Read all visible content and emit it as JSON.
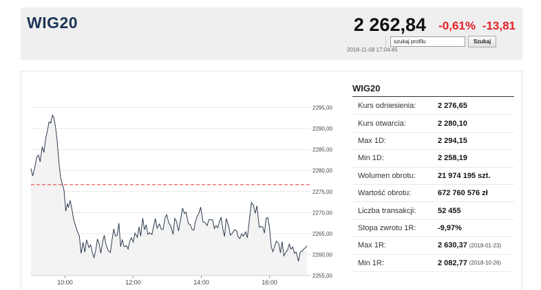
{
  "header": {
    "title": "WIG20",
    "value": "2 262,84",
    "change_pct": "-0,61%",
    "change_abs": "-13,81",
    "timestamp": "2018-11-08 17:04:45",
    "search_placeholder": "szukaj profilu",
    "search_button": "Szukaj"
  },
  "colors": {
    "negative": "#e31e24",
    "title": "#1d3557",
    "line": "#2b3a4d",
    "reference": "#e8323c"
  },
  "table": {
    "title": "WIG20",
    "rows": [
      {
        "label": "Kurs odniesienia:",
        "value": "2 276,65",
        "date": ""
      },
      {
        "label": "Kurs otwarcia:",
        "value": "2 280,10",
        "date": ""
      },
      {
        "label": "Max 1D:",
        "value": "2 294,15",
        "date": ""
      },
      {
        "label": "Min 1D:",
        "value": "2 258,19",
        "date": ""
      },
      {
        "label": "Wolumen obrotu:",
        "value": "21 974 195 szt.",
        "date": ""
      },
      {
        "label": "Wartość obrotu:",
        "value": "672 760 576 zł",
        "date": ""
      },
      {
        "label": "Liczba transakcji:",
        "value": "52 455",
        "date": ""
      },
      {
        "label": "Stopa zwrotu 1R:",
        "value": "-9,97%",
        "date": ""
      },
      {
        "label": "Max 1R:",
        "value": "2 630,37",
        "date": "(2018-01-23)"
      },
      {
        "label": "Min 1R:",
        "value": "2 082,77",
        "date": "(2018-10-26)"
      }
    ]
  },
  "chart_data": {
    "type": "line",
    "title": "",
    "xlabel": "",
    "ylabel": "",
    "xlim": [
      9.0,
      17.2
    ],
    "ylim": [
      2255.0,
      2300.0
    ],
    "yticks": [
      2255,
      2260,
      2265,
      2270,
      2275,
      2280,
      2285,
      2290,
      2295
    ],
    "ytick_labels": [
      "2255,00",
      "2260,00",
      "2265,00",
      "2270,00",
      "2275,00",
      "2280,00",
      "2285,00",
      "2290,00",
      "2295,00"
    ],
    "xticks": [
      10,
      12,
      14,
      16
    ],
    "xtick_labels": [
      "10:00",
      "12:00",
      "14:00",
      "16:00"
    ],
    "reference_line": 2276.65,
    "grid": true,
    "series": [
      {
        "x": [
          9.0,
          9.05,
          9.1,
          9.17,
          9.22,
          9.27,
          9.33,
          9.38,
          9.43,
          9.48,
          9.53,
          9.58,
          9.63,
          9.67,
          9.72,
          9.77,
          9.82,
          9.87,
          9.92,
          9.97,
          10.02,
          10.07,
          10.1,
          10.15,
          10.2,
          10.25,
          10.3,
          10.37,
          10.42,
          10.47,
          10.53,
          10.58,
          10.63,
          10.7,
          10.75,
          10.8,
          10.85,
          10.9,
          10.95,
          11.0,
          11.05,
          11.1,
          11.15,
          11.2,
          11.27,
          11.33,
          11.38,
          11.43,
          11.48,
          11.53,
          11.58,
          11.63,
          11.68,
          11.73,
          11.8,
          11.85,
          11.9,
          11.95,
          12.0,
          12.05,
          12.12,
          12.17,
          12.22,
          12.28,
          12.33,
          12.38,
          12.43,
          12.48,
          12.55,
          12.6,
          12.65,
          12.7,
          12.77,
          12.82,
          12.88,
          12.93,
          12.98,
          13.05,
          13.1,
          13.17,
          13.22,
          13.27,
          13.33,
          13.38,
          13.45,
          13.5,
          13.55,
          13.62,
          13.67,
          13.72,
          13.78,
          13.83,
          13.88,
          13.93,
          13.98,
          14.05,
          14.1,
          14.17,
          14.22,
          14.27,
          14.33,
          14.38,
          14.43,
          14.48,
          14.53,
          14.58,
          14.63,
          14.68,
          14.73,
          14.8,
          14.85,
          14.92,
          14.97,
          15.03,
          15.08,
          15.13,
          15.18,
          15.23,
          15.3,
          15.35,
          15.42,
          15.47,
          15.53,
          15.58,
          15.63,
          15.7,
          15.75,
          15.8,
          15.85,
          15.9,
          15.95,
          16.0,
          16.05,
          16.1,
          16.15,
          16.2,
          16.27,
          16.32,
          16.37,
          16.42,
          16.48,
          16.53,
          16.58,
          16.63,
          16.68,
          16.73,
          16.78,
          16.85,
          16.9,
          16.95,
          17.0,
          17.05,
          17.1
        ],
        "y": [
          2280.5,
          2278.7,
          2280.3,
          2283.2,
          2283.7,
          2282.1,
          2285.7,
          2284.3,
          2287.6,
          2289.4,
          2291.6,
          2291.3,
          2293.2,
          2292.7,
          2290.4,
          2286.9,
          2281.9,
          2278.3,
          2276.8,
          2275.3,
          2270.3,
          2272.1,
          2271.3,
          2272.9,
          2270.9,
          2268.4,
          2267.1,
          2265.3,
          2264.4,
          2260.3,
          2262.9,
          2260.6,
          2263.5,
          2261.7,
          2262.3,
          2260.5,
          2259.3,
          2261.0,
          2263.7,
          2262.6,
          2260.3,
          2262.9,
          2264.6,
          2262.4,
          2260.9,
          2260.5,
          2263.6,
          2266.1,
          2264.4,
          2264.6,
          2267.5,
          2261.9,
          2263.6,
          2261.9,
          2262.1,
          2261.3,
          2263.3,
          2264.0,
          2263.0,
          2265.1,
          2264.1,
          2266.6,
          2264.4,
          2268.7,
          2265.9,
          2267.1,
          2264.8,
          2265.2,
          2264.8,
          2266.7,
          2268.6,
          2266.3,
          2267.3,
          2266.1,
          2266.0,
          2268.6,
          2269.5,
          2267.4,
          2266.9,
          2264.8,
          2268.6,
          2267.9,
          2265.6,
          2267.9,
          2271.1,
          2269.8,
          2270.1,
          2267.3,
          2267.2,
          2266.1,
          2265.8,
          2268.0,
          2269.2,
          2269.9,
          2271.3,
          2267.7,
          2267.7,
          2266.9,
          2268.3,
          2268.3,
          2268.3,
          2266.2,
          2266.9,
          2266.4,
          2267.8,
          2268.9,
          2266.1,
          2264.3,
          2268.6,
          2266.8,
          2264.6,
          2265.2,
          2265.9,
          2265.7,
          2264.2,
          2263.8,
          2264.9,
          2264.4,
          2265.4,
          2264.0,
          2269.1,
          2272.4,
          2271.7,
          2269.8,
          2271.6,
          2266.5,
          2266.7,
          2266.6,
          2265.1,
          2268.6,
          2268.8,
          2266.4,
          2261.9,
          2260.7,
          2262.0,
          2263.2,
          2262.6,
          2260.4,
          2263.1,
          2259.7,
          2260.6,
          2261.1,
          2262.5,
          2261.3,
          2261.8,
          2260.3,
          2260.6,
          2258.4,
          2260.6,
          2260.8,
          2261.3,
          2261.6,
          2262.1
        ]
      }
    ]
  }
}
